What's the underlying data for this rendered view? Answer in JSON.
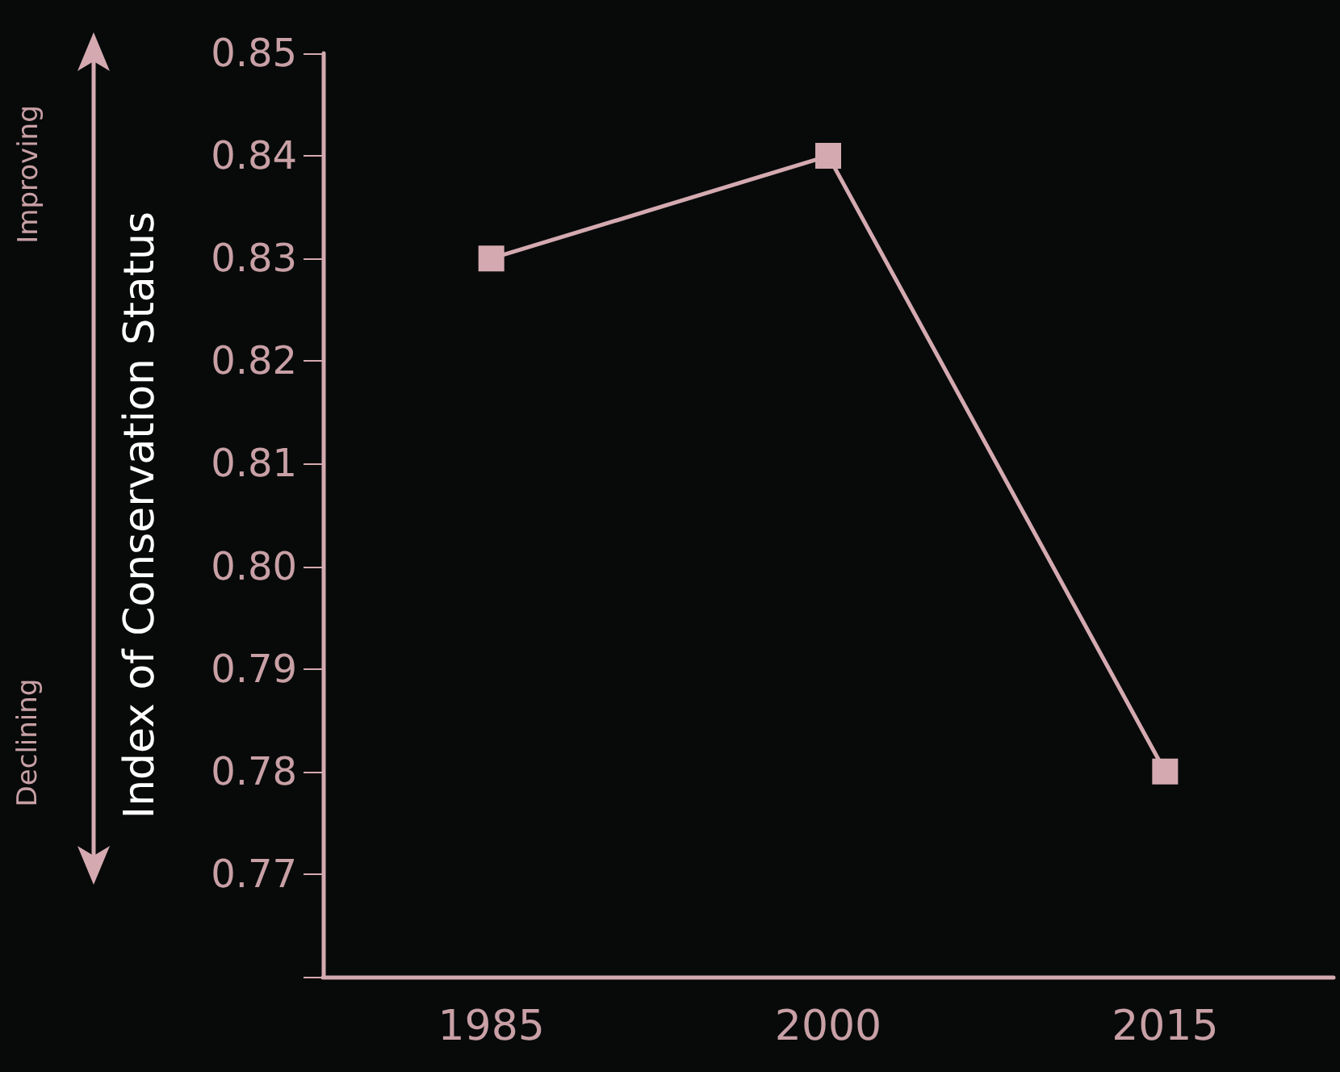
{
  "chart_data": {
    "type": "line",
    "ylabel": "Index of Conservation Status",
    "categories": [
      "1985",
      "2000",
      "2015"
    ],
    "series": [
      {
        "color": "#d4aab0",
        "values": [
          0.83,
          0.84,
          0.78
        ]
      }
    ],
    "ylim": [
      0.76,
      0.85
    ],
    "yticks": [
      {
        "value": 0.76,
        "label": null
      },
      0.77,
      0.78,
      0.79,
      {
        "value": 0.8,
        "label": "0.80"
      },
      0.81,
      0.82,
      0.83,
      0.84,
      0.85
    ],
    "annotations": [
      "Improving",
      "Declining"
    ],
    "marker": "square",
    "line_style": "solid",
    "grid": false
  }
}
